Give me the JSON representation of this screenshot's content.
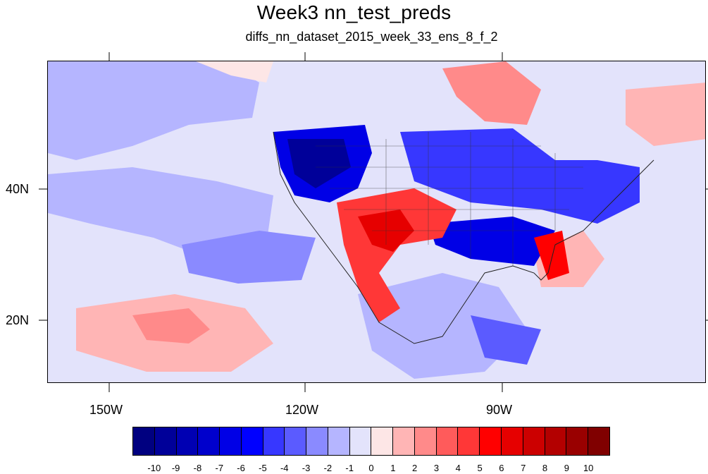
{
  "title": "Week3 nn_test_preds",
  "subtitle": "diffs_nn_dataset_2015_week_33_ens_8_f_2",
  "lat_labels": [
    "40N",
    "20N"
  ],
  "lon_labels": [
    "150W",
    "120W",
    "90W"
  ],
  "map": {
    "projection": "cylindrical equidistant",
    "lon_range": [
      -159,
      -59
    ],
    "lat_range": [
      11,
      59
    ],
    "field": "temperature difference anomaly",
    "coastlines": true,
    "state_boundaries": true
  },
  "colorbar": {
    "colors": [
      "#000080",
      "#000099",
      "#0000b3",
      "#0000cc",
      "#0000e6",
      "#0000ff",
      "#3737ff",
      "#5b5bff",
      "#8a8aff",
      "#b5b5ff",
      "#e3e3fb",
      "#fde6e6",
      "#ffb5b5",
      "#ff8a8a",
      "#ff5b5b",
      "#ff3737",
      "#ff0000",
      "#e60000",
      "#cc0000",
      "#b30000",
      "#990000",
      "#800000"
    ],
    "labels": [
      "-10",
      "-9",
      "-8",
      "-7",
      "-6",
      "-5",
      "-4",
      "-3",
      "-2",
      "-1",
      "0",
      "1",
      "2",
      "3",
      "4",
      "5",
      "6",
      "7",
      "8",
      "9",
      "10"
    ]
  }
}
